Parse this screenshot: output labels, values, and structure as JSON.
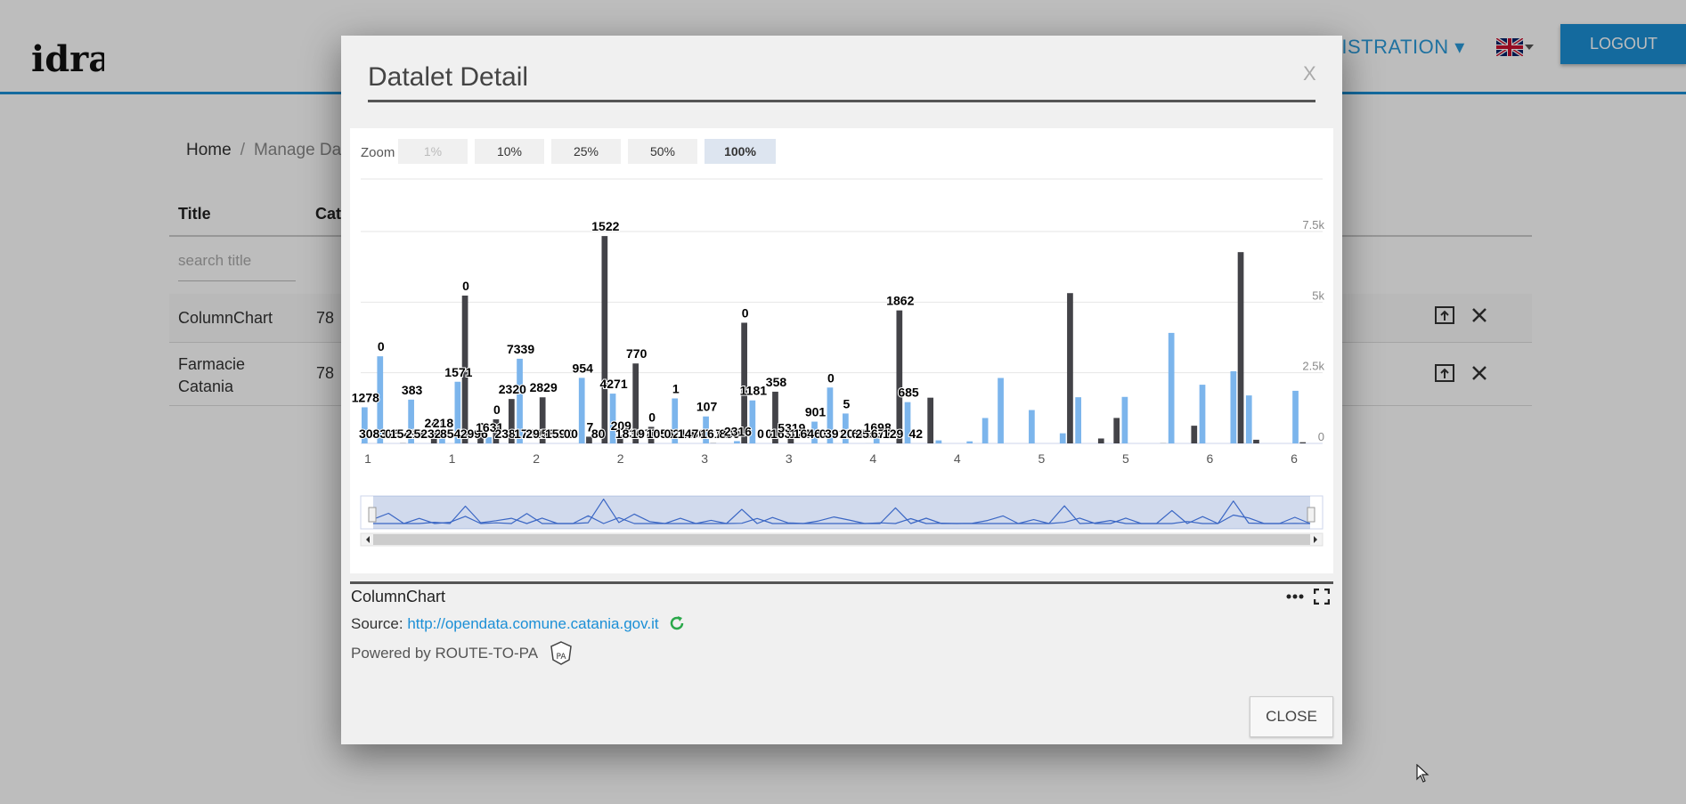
{
  "app": {
    "logo_text": "idra",
    "nav_admin": "NISTRATION",
    "logout": "LOGOUT",
    "flag_icon": "uk-flag-icon"
  },
  "breadcrumb": {
    "home": "Home",
    "current": "Manage Data"
  },
  "table": {
    "headers": {
      "title": "Title",
      "catalogue": "Cata"
    },
    "search_placeholder": "search title",
    "rows": [
      {
        "title": "ColumnChart",
        "catalogue": "78"
      },
      {
        "title": "Farmacie Catania",
        "catalogue": "78"
      }
    ]
  },
  "modal": {
    "title": "Datalet Detail",
    "close_x": "X",
    "zoom": {
      "label": "Zoom",
      "options": [
        "1%",
        "10%",
        "25%",
        "50%",
        "100%"
      ],
      "selected": "100%",
      "disabled": "1%"
    },
    "datalet_name": "ColumnChart",
    "source_label": "Source:",
    "source_url": "http://opendata.comune.catania.gov.it",
    "powered_by": "Powered by ROUTE-TO-PA",
    "close_button": "CLOSE"
  },
  "colors": {
    "accent": "#1b8fd6",
    "series_light": "#7cb5ec",
    "series_dark": "#434348"
  },
  "chart_data": {
    "type": "bar",
    "title": "",
    "xlabel": "",
    "ylabel": "",
    "ylim": [
      0,
      7500
    ],
    "y_ticks": [
      "0",
      "2.5k",
      "5k",
      "7.5k"
    ],
    "x_tick_labels": [
      "1",
      "1",
      "2",
      "2",
      "3",
      "3",
      "4",
      "4",
      "5",
      "5",
      "6",
      "6"
    ],
    "grid": true,
    "legend": "none",
    "series": [
      {
        "values": [
          1278,
          3083,
          0,
          1549,
          0,
          383,
          2182,
          0,
          218,
          0,
          2996,
          0,
          0,
          0,
          2320,
          0,
          1762,
          0,
          0,
          0,
          1592,
          0,
          954,
          0,
          80,
          1522,
          0,
          0,
          0,
          770,
          1977,
          1058,
          0,
          216,
          0,
          1461,
          0,
          107,
          0,
          73,
          899,
          2316,
          0,
          1181,
          0,
          358,
          1634,
          0,
          0,
          1646,
          0,
          0,
          3911,
          0,
          2077,
          0,
          2553,
          1698,
          0,
          0,
          1862,
          0
        ]
      },
      {
        "values": [
          0,
          0,
          6,
          0,
          383,
          0,
          5232,
          241,
          854,
          1571,
          0,
          1631,
          0,
          0,
          238,
          7339,
          290,
          2829,
          586,
          0,
          0,
          0,
          7,
          0,
          4271,
          0,
          1830,
          209,
          0,
          0,
          0,
          0,
          1,
          0,
          4707,
          0,
          1618,
          0,
          0,
          0,
          0,
          0,
          0,
          0,
          0,
          5319,
          0,
          174,
          901,
          0,
          0,
          5,
          0,
          626,
          0,
          0,
          6770,
          129,
          0,
          0,
          42,
          0
        ]
      }
    ],
    "data_labels": [
      {
        "text": "1278"
      },
      {
        "text": "3083"
      },
      {
        "text": "0"
      },
      {
        "text": "0"
      },
      {
        "text": "6"
      },
      {
        "text": "1549"
      },
      {
        "text": "383"
      },
      {
        "text": "2182"
      },
      {
        "text": "5232"
      },
      {
        "text": "241"
      },
      {
        "text": "218"
      },
      {
        "text": "854"
      },
      {
        "text": "1571"
      },
      {
        "text": "0"
      },
      {
        "text": "2996"
      },
      {
        "text": "0"
      },
      {
        "text": "1631"
      },
      {
        "text": "0"
      },
      {
        "text": "238"
      },
      {
        "text": "2320"
      },
      {
        "text": "7339"
      },
      {
        "text": "1762"
      },
      {
        "text": "290"
      },
      {
        "text": "2829"
      },
      {
        "text": "586"
      },
      {
        "text": "1592"
      },
      {
        "text": "0"
      },
      {
        "text": "0"
      },
      {
        "text": "954"
      },
      {
        "text": "7"
      },
      {
        "text": "80"
      },
      {
        "text": "1522"
      },
      {
        "text": "4271"
      },
      {
        "text": "209"
      },
      {
        "text": "1830"
      },
      {
        "text": "770"
      },
      {
        "text": "1977"
      },
      {
        "text": "0"
      },
      {
        "text": "1058"
      },
      {
        "text": "0"
      },
      {
        "text": "1"
      },
      {
        "text": "216"
      },
      {
        "text": "1461"
      },
      {
        "text": "4707"
      },
      {
        "text": "107"
      },
      {
        "text": "1618"
      },
      {
        "text": "73"
      },
      {
        "text": "899"
      },
      {
        "text": "2316"
      },
      {
        "text": "0"
      },
      {
        "text": "1181"
      },
      {
        "text": "0"
      },
      {
        "text": "0"
      },
      {
        "text": "358"
      },
      {
        "text": "1634"
      },
      {
        "text": "5319"
      },
      {
        "text": "174"
      },
      {
        "text": "1646"
      },
      {
        "text": "901"
      },
      {
        "text": "0"
      },
      {
        "text": "0"
      },
      {
        "text": "3911"
      },
      {
        "text": "5"
      },
      {
        "text": "2077"
      },
      {
        "text": "626"
      },
      {
        "text": "2553"
      },
      {
        "text": "1698"
      },
      {
        "text": "6770"
      },
      {
        "text": "129"
      },
      {
        "text": "1862"
      },
      {
        "text": "685"
      },
      {
        "text": "42"
      }
    ]
  }
}
